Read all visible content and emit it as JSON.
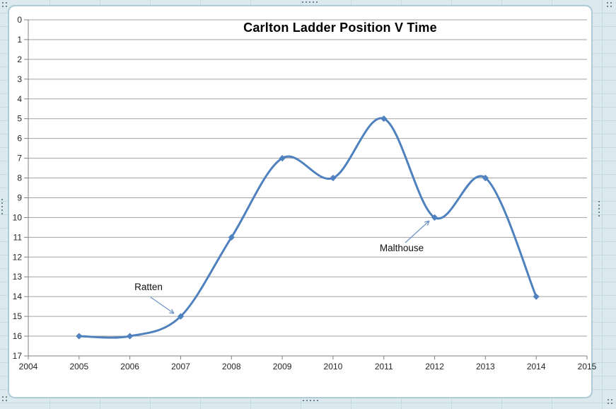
{
  "chart_data": {
    "type": "line",
    "title": "Carlton Ladder Position V Time",
    "x": [
      2005,
      2006,
      2007,
      2008,
      2009,
      2010,
      2011,
      2012,
      2013,
      2014
    ],
    "values": [
      16,
      16,
      15,
      11,
      7,
      8,
      5,
      10,
      8,
      14
    ],
    "xlabel": "",
    "ylabel": "",
    "xlim": [
      2004,
      2015
    ],
    "ylim": [
      0,
      17
    ],
    "y_axis_inverted": true,
    "xticks": [
      "2004",
      "2005",
      "2006",
      "2007",
      "2008",
      "2009",
      "2010",
      "2011",
      "2012",
      "2013",
      "2014",
      "2015"
    ],
    "yticks": [
      "0",
      "1",
      "2",
      "3",
      "4",
      "5",
      "6",
      "7",
      "8",
      "9",
      "10",
      "11",
      "12",
      "13",
      "14",
      "15",
      "16",
      "17"
    ],
    "grid": "horizontal",
    "legend": "none",
    "smooth": true,
    "marker": "diamond",
    "line_color": "#4E81BD",
    "gridline_color": "#A2A2A2",
    "axis_color": "#808080",
    "annotation_arrow_color": "#7396C5",
    "annotations": [
      {
        "label": "Ratten",
        "x": 2007,
        "y": 15
      },
      {
        "label": "Malthouse",
        "x": 2012,
        "y": 10
      }
    ]
  }
}
